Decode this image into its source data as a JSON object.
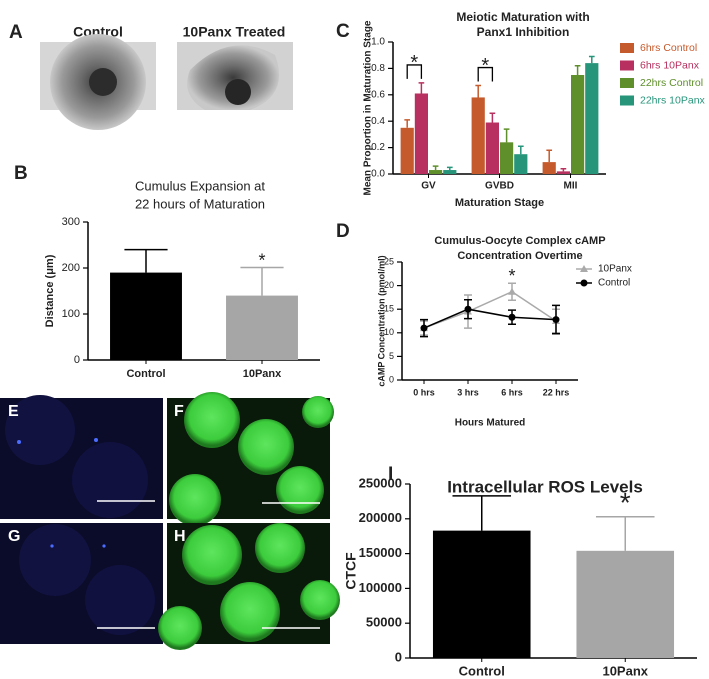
{
  "figure_a": {
    "panel": "A",
    "captions": [
      "Control",
      "10Panx Treated"
    ]
  },
  "micrographs": [
    "E",
    "F",
    "G",
    "H"
  ],
  "chart_data": [
    {
      "panel": "B",
      "type": "bar",
      "title": [
        "Cumulus Expansion at",
        "22 hours of Maturation"
      ],
      "y_label": "Distance (μm)",
      "categories": [
        "Control",
        "10Panx"
      ],
      "values": [
        190,
        140
      ],
      "errors": [
        50,
        61
      ],
      "colors": [
        "#000000",
        "#a6a6a6"
      ],
      "ylim": [
        0,
        300
      ],
      "yticks": [
        0,
        100,
        200,
        300
      ],
      "annotations": [
        {
          "text": "*",
          "at": "10Panx"
        }
      ]
    },
    {
      "panel": "C",
      "type": "bar",
      "title": [
        "Meiotic Maturation with",
        "Panx1 Inhibition"
      ],
      "y_label": "Mean Proportion in Maturation Stage",
      "x_label": "Maturation Stage",
      "categories": [
        "GV",
        "GVBD",
        "MII"
      ],
      "series": [
        {
          "name": "6hrs Control",
          "color": "#c55a2c",
          "values": [
            0.35,
            0.58,
            0.09
          ],
          "errors": [
            0.06,
            0.09,
            0.09
          ]
        },
        {
          "name": "6hrs 10Panx",
          "color": "#b8305f",
          "values": [
            0.61,
            0.39,
            0.02
          ],
          "errors": [
            0.08,
            0.07,
            0.02
          ]
        },
        {
          "name": "22hrs Control",
          "color": "#5e8f2a",
          "values": [
            0.03,
            0.24,
            0.75
          ],
          "errors": [
            0.03,
            0.1,
            0.07
          ]
        },
        {
          "name": "22hrs 10Panx",
          "color": "#26957a",
          "values": [
            0.03,
            0.15,
            0.84
          ],
          "errors": [
            0.02,
            0.06,
            0.05
          ]
        }
      ],
      "ylim": [
        0,
        1
      ],
      "yticks": [
        {
          "value": 0,
          "label": "0.0"
        },
        {
          "value": 0.2,
          "label": "0.2"
        },
        {
          "value": 0.4,
          "label": "0.4"
        },
        {
          "value": 0.6,
          "label": "0.6"
        },
        {
          "value": 0.8,
          "label": "0.8"
        },
        {
          "value": 1,
          "label": "1.0"
        }
      ],
      "annotations": [
        {
          "text": "*",
          "at": "GV"
        },
        {
          "text": "*",
          "at": "GVBD"
        }
      ]
    },
    {
      "panel": "D",
      "type": "line",
      "title": [
        "Cumulus-Oocyte Complex cAMP",
        "Concentration Overtime"
      ],
      "y_label": "cAMP Concentration (pmol/ml)",
      "x_label": "Hours Matured",
      "categories": [
        "0 hrs",
        "3 hrs",
        "6 hrs",
        "22 hrs"
      ],
      "series": [
        {
          "name": "10Panx",
          "color": "#aaaaaa",
          "marker": "triangle",
          "values": [
            11,
            14.5,
            18.7,
            12.5
          ],
          "errors": [
            1.5,
            3.5,
            1.8,
            2.5
          ]
        },
        {
          "name": "Control",
          "color": "#000000",
          "marker": "circle",
          "values": [
            11,
            15,
            13.3,
            12.8
          ],
          "errors": [
            1.8,
            2,
            1.5,
            3
          ]
        }
      ],
      "ylim": [
        0,
        25
      ],
      "yticks": [
        0,
        5,
        10,
        15,
        20,
        25
      ],
      "annotations": [
        {
          "text": "*",
          "at": "6 hrs"
        }
      ]
    },
    {
      "panel": "I",
      "type": "bar",
      "title": [
        "Intracellular ROS Levels"
      ],
      "y_label": "CTCF",
      "categories": [
        "Control",
        "10Panx"
      ],
      "values": [
        183000,
        154000
      ],
      "errors": [
        50000,
        49000
      ],
      "colors": [
        "#000000",
        "#a6a6a6"
      ],
      "ylim": [
        0,
        250000
      ],
      "yticks": [
        0,
        50000,
        100000,
        150000,
        200000,
        250000
      ],
      "annotations": [
        {
          "text": "*",
          "at": "10Panx"
        }
      ]
    }
  ]
}
